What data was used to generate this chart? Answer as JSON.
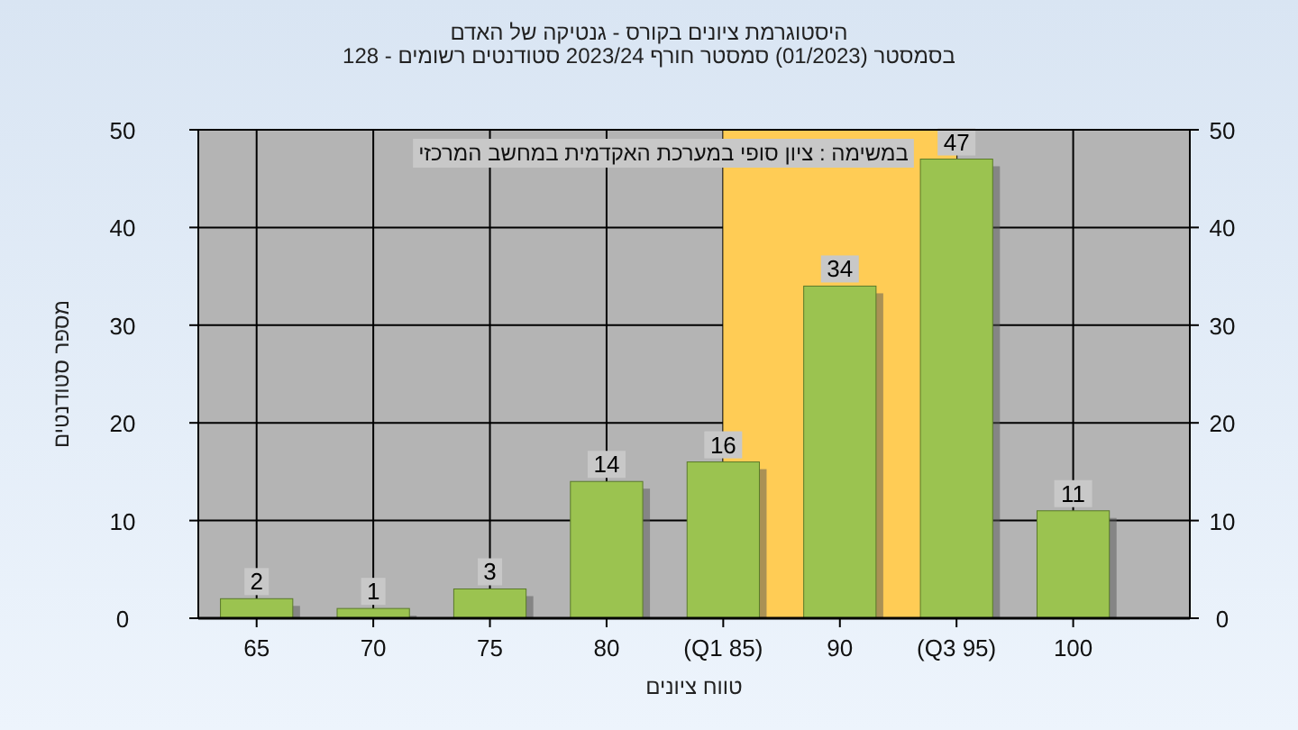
{
  "chart_data": {
    "type": "bar",
    "title": "היסטוגרמת ציונים בקורס - גנטיקה של האדם",
    "subtitle": "בסמסטר  (01/2023)  סמסטר חורף 2023/24 סטודנטים רשומים - 128",
    "xlabel": "טווח ציונים",
    "ylabel": "מספר סטודנטים",
    "annotations": [
      "במשימה : ציון סופי במערכת האקדמית במחשב המרכזי"
    ],
    "categories": [
      "65",
      "70",
      "75",
      "80",
      "(Q1 85)",
      "90",
      "(Q3 95)",
      "100"
    ],
    "series": [
      {
        "color": "#9bc350",
        "values": [
          2,
          1,
          3,
          14,
          16,
          34,
          47,
          11
        ]
      }
    ],
    "bands": [
      {
        "axis": "x",
        "from": "(Q1 85)",
        "to": "(Q3 95)",
        "color": "#ffcc55"
      }
    ],
    "ylim": [
      0,
      50
    ],
    "yticks": [
      0,
      10,
      20,
      30,
      40,
      50
    ],
    "y2lim": [
      0,
      50
    ],
    "y2ticks": [
      0,
      10,
      20,
      30,
      40,
      50
    ],
    "grid": true,
    "data_labels": true
  }
}
